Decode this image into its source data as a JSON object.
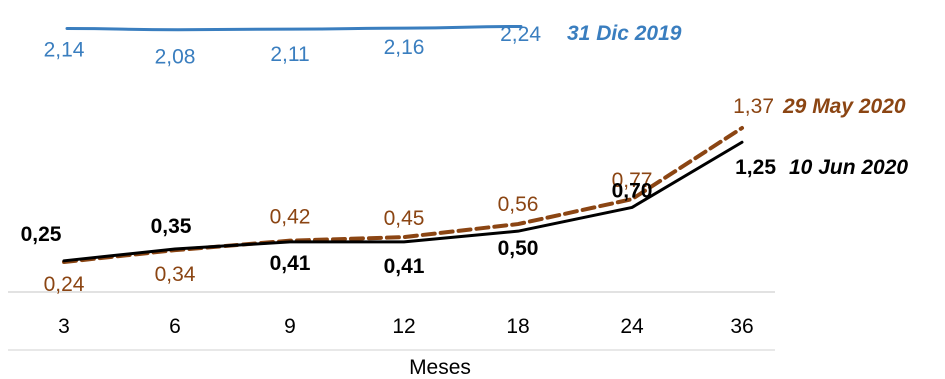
{
  "chart_data": {
    "type": "line",
    "xlabel": "Meses",
    "categories": [
      "3",
      "6",
      "9",
      "12",
      "18",
      "24",
      "36"
    ],
    "series": [
      {
        "name": "31 Dic 2019",
        "color": "#3a7ebf",
        "style": "solid",
        "values": [
          2.14,
          2.08,
          2.11,
          2.16,
          2.24,
          null,
          null
        ],
        "labels": [
          "2,14",
          "2,08",
          "2,11",
          "2,16",
          "2,24",
          null,
          null
        ]
      },
      {
        "name": "29 May 2020",
        "color": "#8b4513",
        "style": "dashed",
        "values": [
          0.24,
          0.34,
          0.42,
          0.45,
          0.56,
          0.77,
          1.37
        ],
        "labels": [
          "0,24",
          "0,34",
          "0,42",
          "0,45",
          "0,56",
          "0,77",
          "1,37"
        ]
      },
      {
        "name": "10 Jun 2020",
        "color": "#000000",
        "style": "solid",
        "values": [
          0.25,
          0.35,
          0.41,
          0.41,
          0.5,
          0.7,
          1.25
        ],
        "labels": [
          "0,25",
          "0,35",
          "0,41",
          "0,41",
          "0,50",
          "0,70",
          "1,25"
        ]
      }
    ],
    "grid": false
  }
}
